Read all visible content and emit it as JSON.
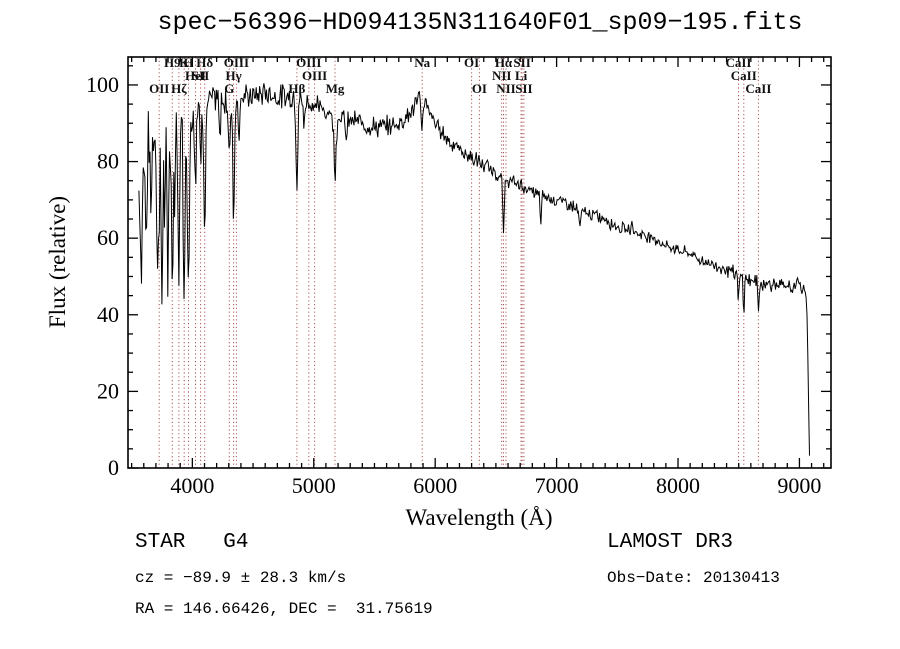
{
  "annotations": {
    "class_line": "STAR   G4",
    "cz_line": "cz = −89.9 ± 28.3 km/s",
    "radec_line": "RA = 146.66426, DEC =  31.75619",
    "survey_line": "LAMOST DR3",
    "obsdate_line": "Obs−Date: 20130413"
  },
  "chart_data": {
    "type": "line",
    "title": "spec−56396−HD094135N311640F01_sp09−195.fits",
    "xlabel": "Wavelength (Å)",
    "ylabel": "Flux (relative)",
    "xlim": [
      3470,
      9260
    ],
    "ylim": [
      0,
      107.3
    ],
    "x_major_ticks": [
      4000,
      5000,
      6000,
      7000,
      8000,
      9000
    ],
    "x_minor_step": 100,
    "y_major_ticks": [
      0,
      20,
      40,
      60,
      80,
      100
    ],
    "y_minor_step": 5,
    "grid": false,
    "series_color": "#000000",
    "marker_line_color": "#aa5555",
    "line_markers": [
      {
        "label": "OII",
        "wavelength": 3727,
        "row": 2
      },
      {
        "label": "H9",
        "wavelength": 3835,
        "row": 0
      },
      {
        "label": "Hζ",
        "wavelength": 3889,
        "row": 2
      },
      {
        "label": "K",
        "wavelength": 3933,
        "row": 0
      },
      {
        "label": "H",
        "wavelength": 3968,
        "row": 0
      },
      {
        "label": "HeI",
        "wavelength": 4026,
        "row": 1
      },
      {
        "label": "SII",
        "wavelength": 4068,
        "row": 1
      },
      {
        "label": "Hδ",
        "wavelength": 4102,
        "row": 0
      },
      {
        "label": "G",
        "wavelength": 4304,
        "row": 2
      },
      {
        "label": "Hγ",
        "wavelength": 4340,
        "row": 1
      },
      {
        "label": "OIII",
        "wavelength": 4363,
        "row": 0
      },
      {
        "label": "Hβ",
        "wavelength": 4861,
        "row": 2
      },
      {
        "label": "OIII",
        "wavelength": 4959,
        "row": 0
      },
      {
        "label": "OIII",
        "wavelength": 5007,
        "row": 1
      },
      {
        "label": "Mg",
        "wavelength": 5175,
        "row": 2
      },
      {
        "label": "Na",
        "wavelength": 5893,
        "row": 0
      },
      {
        "label": "OI",
        "wavelength": 6300,
        "row": 0
      },
      {
        "label": "OI",
        "wavelength": 6364,
        "row": 2
      },
      {
        "label": "NII",
        "wavelength": 6548,
        "row": 1
      },
      {
        "label": "Hα",
        "wavelength": 6563,
        "row": 0
      },
      {
        "label": "NII",
        "wavelength": 6583,
        "row": 2
      },
      {
        "label": "Li",
        "wavelength": 6708,
        "row": 1
      },
      {
        "label": "SII",
        "wavelength": 6716,
        "row": 0
      },
      {
        "label": "SII",
        "wavelength": 6731,
        "row": 2
      },
      {
        "label": "CaII",
        "wavelength": 8498,
        "row": 0
      },
      {
        "label": "CaII",
        "wavelength": 8542,
        "row": 1
      },
      {
        "label": "CaII",
        "wavelength": 8662,
        "row": 2
      }
    ],
    "continuum": [
      [
        3560,
        72
      ],
      [
        3600,
        80
      ],
      [
        3650,
        85
      ],
      [
        3700,
        87
      ],
      [
        3750,
        89
      ],
      [
        3800,
        90
      ],
      [
        3850,
        92
      ],
      [
        3900,
        93
      ],
      [
        3950,
        94
      ],
      [
        4000,
        94
      ],
      [
        4100,
        95
      ],
      [
        4200,
        96
      ],
      [
        4300,
        96
      ],
      [
        4400,
        97
      ],
      [
        4500,
        97
      ],
      [
        4600,
        98
      ],
      [
        4700,
        97
      ],
      [
        4800,
        97
      ],
      [
        4900,
        96
      ],
      [
        5000,
        95
      ],
      [
        5100,
        93
      ],
      [
        5200,
        92
      ],
      [
        5300,
        91
      ],
      [
        5400,
        90
      ],
      [
        5500,
        89
      ],
      [
        5600,
        89
      ],
      [
        5700,
        90
      ],
      [
        5800,
        93
      ],
      [
        5860,
        96
      ],
      [
        5900,
        97
      ],
      [
        5950,
        93
      ],
      [
        6000,
        90
      ],
      [
        6050,
        88
      ],
      [
        6100,
        86
      ],
      [
        6200,
        83
      ],
      [
        6300,
        81
      ],
      [
        6400,
        79
      ],
      [
        6500,
        77
      ],
      [
        6600,
        75
      ],
      [
        6700,
        74
      ],
      [
        6800,
        72
      ],
      [
        6900,
        71
      ],
      [
        7000,
        70
      ],
      [
        7100,
        69
      ],
      [
        7200,
        67
      ],
      [
        7300,
        66
      ],
      [
        7400,
        65
      ],
      [
        7500,
        63
      ],
      [
        7600,
        62
      ],
      [
        7700,
        61
      ],
      [
        7800,
        60
      ],
      [
        7900,
        58
      ],
      [
        8000,
        57
      ],
      [
        8100,
        56
      ],
      [
        8200,
        54
      ],
      [
        8300,
        53
      ],
      [
        8400,
        52
      ],
      [
        8500,
        50
      ],
      [
        8600,
        49
      ],
      [
        8700,
        48
      ],
      [
        8800,
        48
      ],
      [
        8900,
        47
      ],
      [
        9000,
        48
      ],
      [
        9040,
        46
      ],
      [
        9060,
        44
      ],
      [
        9070,
        28
      ],
      [
        9080,
        6
      ],
      [
        9088,
        1
      ]
    ],
    "absorption_features": [
      [
        3580,
        28,
        6
      ],
      [
        3620,
        24,
        5
      ],
      [
        3660,
        20,
        5
      ],
      [
        3712,
        38,
        6
      ],
      [
        3727,
        26,
        5
      ],
      [
        3750,
        42,
        6
      ],
      [
        3771,
        30,
        5
      ],
      [
        3798,
        40,
        6
      ],
      [
        3820,
        20,
        5
      ],
      [
        3835,
        48,
        6
      ],
      [
        3856,
        24,
        5
      ],
      [
        3889,
        46,
        7
      ],
      [
        3933,
        56,
        7
      ],
      [
        3968,
        50,
        7
      ],
      [
        4026,
        18,
        5
      ],
      [
        4068,
        16,
        5
      ],
      [
        4102,
        33,
        7
      ],
      [
        4226,
        12,
        5
      ],
      [
        4304,
        14,
        8
      ],
      [
        4340,
        30,
        7
      ],
      [
        4383,
        12,
        5
      ],
      [
        4861,
        22,
        7
      ],
      [
        4920,
        8,
        5
      ],
      [
        5175,
        15,
        9
      ],
      [
        5270,
        7,
        6
      ],
      [
        5893,
        9,
        6
      ],
      [
        6563,
        14,
        7
      ],
      [
        6870,
        8,
        5
      ],
      [
        7190,
        5,
        6
      ],
      [
        7620,
        -4,
        5
      ],
      [
        8498,
        7,
        5
      ],
      [
        8542,
        8,
        5
      ],
      [
        8662,
        7,
        5
      ]
    ],
    "noise_regions": [
      [
        3560,
        4050,
        7
      ],
      [
        4050,
        4350,
        3.5
      ],
      [
        4350,
        5050,
        2.5
      ],
      [
        5050,
        5900,
        2.2
      ],
      [
        5900,
        6600,
        1.8
      ],
      [
        6600,
        7500,
        1.4
      ],
      [
        7500,
        8300,
        1.2
      ],
      [
        8300,
        9055,
        1.6
      ],
      [
        9055,
        9090,
        0.8
      ]
    ],
    "noise_seed": 7,
    "sample_step": 7,
    "spectrum_range": [
      3560,
      9088
    ]
  }
}
